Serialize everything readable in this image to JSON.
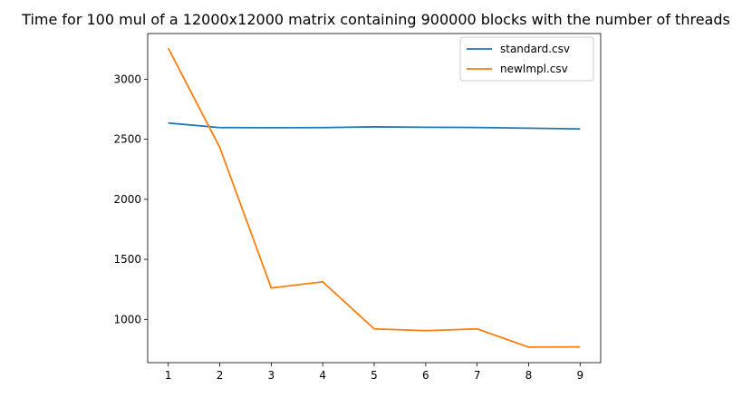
{
  "chart_data": {
    "type": "line",
    "title": "Time for 100 mul of a 12000x12000 matrix containing 900000 blocks with the number of threads",
    "xlabel": "",
    "ylabel": "",
    "x": [
      1,
      2,
      3,
      4,
      5,
      6,
      7,
      8,
      9
    ],
    "xlim": [
      0.6,
      9.4
    ],
    "ylim": [
      640,
      3380
    ],
    "xticks": [
      1,
      2,
      3,
      4,
      5,
      6,
      7,
      8,
      9
    ],
    "yticks": [
      1000,
      1500,
      2000,
      2500,
      3000
    ],
    "grid": false,
    "legend": "upper right",
    "series": [
      {
        "name": "standard.csv",
        "color": "#1f77b4",
        "values": [
          2635,
          2597,
          2596,
          2597,
          2603,
          2600,
          2598,
          2592,
          2586
        ]
      },
      {
        "name": "newImpl.csv",
        "color": "#ff7f0e",
        "values": [
          3258,
          2432,
          1262,
          1313,
          921,
          906,
          921,
          769,
          771
        ]
      }
    ]
  }
}
